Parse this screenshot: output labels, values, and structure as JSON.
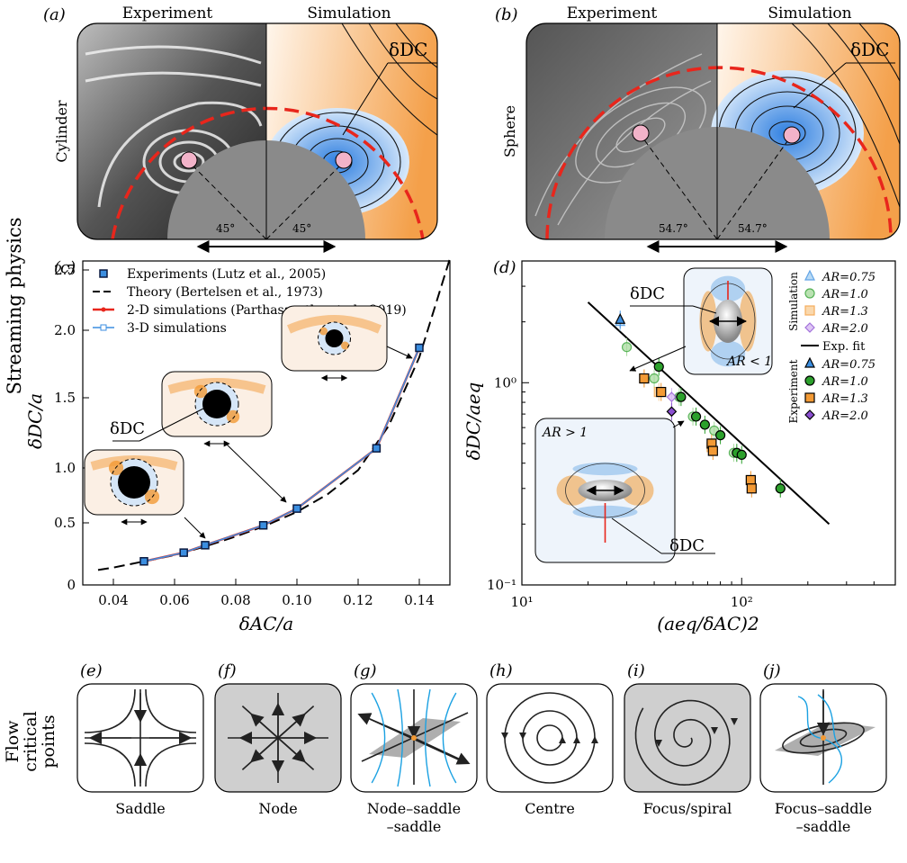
{
  "panel_labels": {
    "a": "(a)",
    "b": "(b)",
    "c": "(c)",
    "d": "(d)",
    "e": "(e)",
    "f": "(f)",
    "g": "(g)",
    "h": "(h)",
    "i": "(i)",
    "j": "(j)"
  },
  "section_labels": {
    "streaming": "Streaming physics",
    "flow_line1": "Flow",
    "flow_line2": "critical",
    "flow_line3": "points"
  },
  "panel_a": {
    "left_title": "Experiment",
    "right_title": "Simulation",
    "side_label": "Cylinder",
    "delta_label": "δDC",
    "angle_left": "45°",
    "angle_right": "45°"
  },
  "panel_b": {
    "left_title": "Experiment",
    "right_title": "Simulation",
    "side_label": "Sphere",
    "delta_label": "δDC",
    "angle_left": "54.7°",
    "angle_right": "54.7°"
  },
  "critical_points": [
    {
      "id": "e",
      "label": "Saddle",
      "shaded": false
    },
    {
      "id": "f",
      "label": "Node",
      "shaded": true
    },
    {
      "id": "g",
      "label": "Node–saddle",
      "label2": "–saddle",
      "shaded": false
    },
    {
      "id": "h",
      "label": "Centre",
      "shaded": false
    },
    {
      "id": "i",
      "label": "Focus/spiral",
      "shaded": true
    },
    {
      "id": "j",
      "label": "Focus–saddle",
      "label2": "–saddle",
      "shaded": false
    }
  ],
  "colors": {
    "red": "#e8261c",
    "blue": "#3b8ee0",
    "orange": "#f39a35",
    "green": "#2ca02c",
    "purple": "#8b4fd1",
    "gray": "#8c8c8c",
    "pink": "#f2b3c9"
  },
  "chart_data": [
    {
      "type": "line",
      "panel": "c",
      "xlabel": "δAC/a",
      "ylabel": "δDC/a",
      "xlim": [
        0.03,
        0.15
      ],
      "ylim": [
        0,
        2.7
      ],
      "y_scale": "nonlinear (reciprocal-like)",
      "xticks": [
        "0.04",
        "0.06",
        "0.08",
        "0.10",
        "0.12",
        "0.14"
      ],
      "yticks": [
        "0",
        "0.5",
        "1.0",
        "1.5",
        "2.0",
        "2.5"
      ],
      "legend_placement": "top",
      "delta_label": "δDC",
      "series": [
        {
          "name": "Experiments (Lutz et al., 2005)",
          "style": "square-marker",
          "x": [
            0.05,
            0.063,
            0.07,
            0.089,
            0.1,
            0.126,
            0.14
          ],
          "y": [
            0.19,
            0.26,
            0.32,
            0.48,
            0.63,
            1.14,
            1.87
          ]
        },
        {
          "name": "Theory (Bertelsen et al., 1973)",
          "style": "dashed",
          "x": [
            0.035,
            0.04,
            0.05,
            0.06,
            0.07,
            0.08,
            0.09,
            0.1,
            0.11,
            0.12,
            0.13,
            0.14,
            0.15
          ],
          "y": [
            0.12,
            0.14,
            0.19,
            0.24,
            0.31,
            0.39,
            0.48,
            0.6,
            0.76,
            0.98,
            1.3,
            1.8,
            2.65
          ]
        },
        {
          "name": "2-D simulations (Parthasarathy et al., 2019)",
          "style": "red-line",
          "x": [
            0.05,
            0.063,
            0.07,
            0.089,
            0.1,
            0.126,
            0.14
          ],
          "y": [
            0.19,
            0.26,
            0.32,
            0.48,
            0.63,
            1.14,
            1.87
          ]
        },
        {
          "name": "3-D simulations",
          "style": "blue-line",
          "x": [
            0.05,
            0.063,
            0.07,
            0.089,
            0.1,
            0.126,
            0.14
          ],
          "y": [
            0.19,
            0.26,
            0.32,
            0.48,
            0.63,
            1.14,
            1.87
          ]
        }
      ]
    },
    {
      "type": "scatter",
      "panel": "d",
      "xlabel": "(aeq/δAC)2",
      "ylabel": "δDC/aeq",
      "x_scale": "log",
      "y_scale": "log",
      "xlim": [
        10,
        500
      ],
      "ylim": [
        0.1,
        4
      ],
      "xticks": [
        "10¹",
        "10²"
      ],
      "yticks": [
        "10⁻¹",
        "10⁰"
      ],
      "legend_placement": "right",
      "legend_groups": [
        "Simulation",
        "Experiment"
      ],
      "fit": {
        "name": "Exp. fit",
        "x": [
          20,
          250
        ],
        "y": [
          2.5,
          0.2
        ]
      },
      "inset_labels": {
        "ar_lt": "AR < 1",
        "ar_gt": "AR > 1",
        "delta": "δDC"
      },
      "series": [
        {
          "name": "AR=0.75",
          "group": "Simulation",
          "marker": "triangle",
          "x": [
            28
          ],
          "y": [
            2.0
          ]
        },
        {
          "name": "AR=1.0",
          "group": "Simulation",
          "marker": "circle",
          "x": [
            30,
            40,
            52,
            60,
            75,
            92,
            150
          ],
          "y": [
            1.5,
            1.05,
            0.85,
            0.68,
            0.58,
            0.45,
            0.3
          ]
        },
        {
          "name": "AR=1.3",
          "group": "Simulation",
          "marker": "square",
          "x": [
            36,
            42,
            73,
            110
          ],
          "y": [
            1.05,
            0.9,
            0.48,
            0.33
          ]
        },
        {
          "name": "AR=2.0",
          "group": "Simulation",
          "marker": "diamond",
          "x": [
            48
          ],
          "y": [
            0.85
          ]
        },
        {
          "name": "AR=0.75",
          "group": "Experiment",
          "marker": "triangle",
          "x": [
            28
          ],
          "y": [
            2.05
          ]
        },
        {
          "name": "AR=1.0",
          "group": "Experiment",
          "marker": "circle",
          "x": [
            42,
            53,
            62,
            68,
            80,
            95,
            100,
            150
          ],
          "y": [
            1.2,
            0.85,
            0.68,
            0.62,
            0.55,
            0.45,
            0.44,
            0.3
          ]
        },
        {
          "name": "AR=1.3",
          "group": "Experiment",
          "marker": "square",
          "x": [
            36,
            43,
            73,
            74,
            110,
            111
          ],
          "y": [
            1.05,
            0.9,
            0.5,
            0.46,
            0.33,
            0.3
          ]
        },
        {
          "name": "AR=2.0",
          "group": "Experiment",
          "marker": "diamond",
          "x": [
            48
          ],
          "y": [
            0.72
          ]
        }
      ]
    }
  ]
}
